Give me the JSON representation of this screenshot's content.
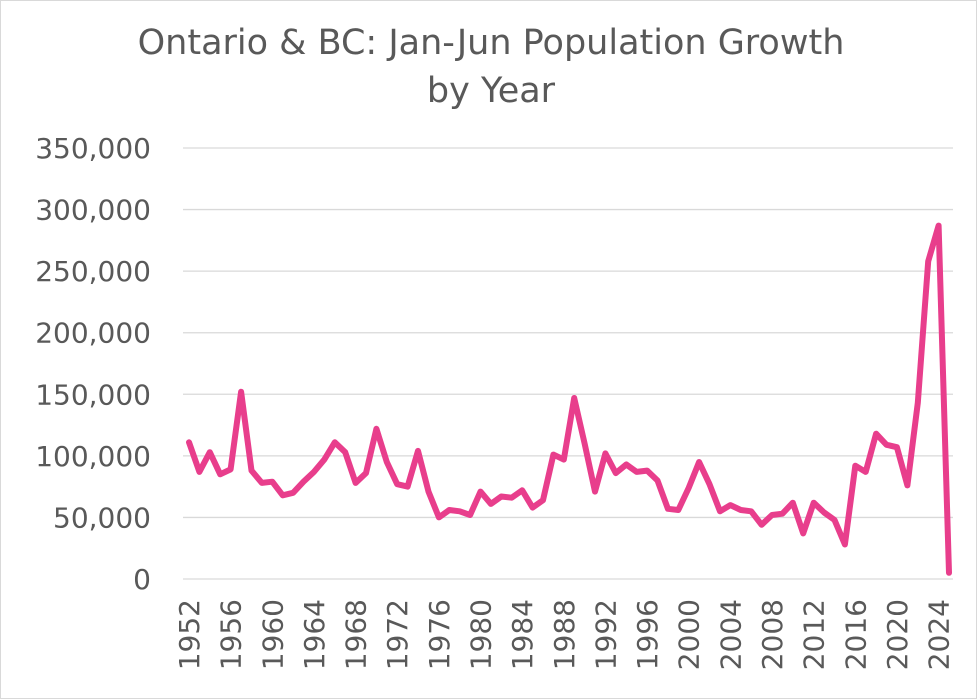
{
  "chart_data": {
    "type": "line",
    "title": "Ontario & BC: Jan-Jun Population Growth by Year",
    "xlabel": "",
    "ylabel": "",
    "ylim": [
      0,
      350000
    ],
    "yticks": [
      0,
      50000,
      100000,
      150000,
      200000,
      250000,
      300000,
      350000
    ],
    "ytick_labels": [
      "0",
      "50,000",
      "100,000",
      "150,000",
      "200,000",
      "250,000",
      "300,000",
      "350,000"
    ],
    "xtick_labels": [
      "1952",
      "1956",
      "1960",
      "1964",
      "1968",
      "1972",
      "1976",
      "1980",
      "1984",
      "1988",
      "1992",
      "1996",
      "2000",
      "2004",
      "2008",
      "2012",
      "2016",
      "2020",
      "2024"
    ],
    "grid": true,
    "series": [
      {
        "name": "Ontario & BC",
        "color": "#E83E8C",
        "x": [
          1952,
          1953,
          1954,
          1955,
          1956,
          1957,
          1958,
          1959,
          1960,
          1961,
          1962,
          1963,
          1964,
          1965,
          1966,
          1967,
          1968,
          1969,
          1970,
          1971,
          1972,
          1973,
          1974,
          1975,
          1976,
          1977,
          1978,
          1979,
          1980,
          1981,
          1982,
          1983,
          1984,
          1985,
          1986,
          1987,
          1988,
          1989,
          1990,
          1991,
          1992,
          1993,
          1994,
          1995,
          1996,
          1997,
          1998,
          1999,
          2000,
          2001,
          2002,
          2003,
          2004,
          2005,
          2006,
          2007,
          2008,
          2009,
          2010,
          2011,
          2012,
          2013,
          2014,
          2015,
          2016,
          2017,
          2018,
          2019,
          2020,
          2021,
          2022,
          2023,
          2024,
          2025
        ],
        "values": [
          111000,
          87000,
          103000,
          85000,
          89000,
          152000,
          88000,
          78000,
          79000,
          68000,
          70000,
          79000,
          87000,
          97000,
          111000,
          103000,
          78000,
          86000,
          122000,
          95000,
          77000,
          75000,
          104000,
          71000,
          50000,
          56000,
          55000,
          52000,
          71000,
          61000,
          67000,
          66000,
          72000,
          58000,
          64000,
          101000,
          97000,
          147000,
          110000,
          71000,
          102000,
          86000,
          93000,
          87000,
          88000,
          80000,
          57000,
          56000,
          74000,
          95000,
          77000,
          55000,
          60000,
          56000,
          55000,
          44000,
          52000,
          53000,
          62000,
          37000,
          62000,
          54000,
          48000,
          28000,
          92000,
          87000,
          118000,
          109000,
          107000,
          76000,
          143000,
          258000,
          287000,
          5000
        ]
      }
    ]
  }
}
